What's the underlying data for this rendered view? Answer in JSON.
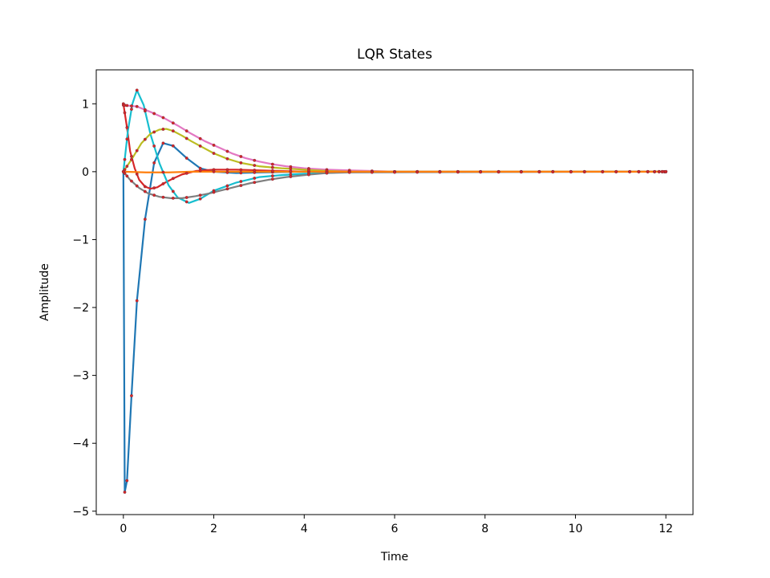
{
  "chart_data": {
    "type": "line",
    "title": "LQR States",
    "xlabel": "Time",
    "ylabel": "Amplitude",
    "xlim": [
      -0.6,
      12.6
    ],
    "ylim": [
      -5.05,
      1.5
    ],
    "xticks": [
      0,
      2,
      4,
      6,
      8,
      10,
      12
    ],
    "yticks": [
      1,
      0,
      -1,
      -2,
      -3,
      -4,
      -5
    ],
    "xtick_labels": [
      "0",
      "2",
      "4",
      "6",
      "8",
      "10",
      "12"
    ],
    "ytick_labels": [
      "1",
      "0",
      "−1",
      "−2",
      "−3",
      "−4",
      "−5"
    ],
    "grid": false,
    "legend": false,
    "marker_color": "#d62728",
    "series": [
      {
        "color": "#1f77b4",
        "x": [
          0.0,
          0.03,
          0.08,
          0.18,
          0.3,
          0.48,
          0.68,
          0.88,
          1.1,
          1.4,
          1.7,
          2.0,
          2.5,
          3.0,
          4.0,
          12.0
        ],
        "y": [
          0.0,
          -4.72,
          -4.55,
          -3.3,
          -1.9,
          -0.7,
          0.13,
          0.42,
          0.38,
          0.2,
          0.05,
          0.0,
          -0.02,
          -0.01,
          0.0,
          0.0
        ]
      },
      {
        "color": "#d62728",
        "x": [
          0.0,
          0.08,
          0.15,
          0.25,
          0.35,
          0.48,
          0.6,
          0.75,
          0.9,
          1.1,
          1.3,
          1.6,
          2.0,
          2.5,
          3.0,
          4.0,
          12.0
        ],
        "y": [
          1.0,
          0.65,
          0.3,
          0.05,
          -0.12,
          -0.22,
          -0.25,
          -0.23,
          -0.17,
          -0.1,
          -0.04,
          0.01,
          0.03,
          0.03,
          0.02,
          0.0,
          0.0
        ]
      },
      {
        "color": "#17becf",
        "x": [
          0.0,
          0.1,
          0.2,
          0.3,
          0.45,
          0.6,
          0.8,
          1.0,
          1.2,
          1.45,
          1.7,
          2.0,
          2.5,
          3.0,
          3.5,
          4.0,
          4.5,
          5.0,
          12.0
        ],
        "y": [
          0.0,
          0.6,
          1.0,
          1.2,
          0.98,
          0.55,
          0.12,
          -0.2,
          -0.38,
          -0.46,
          -0.4,
          -0.28,
          -0.16,
          -0.08,
          -0.05,
          -0.03,
          -0.02,
          0.0,
          0.0
        ]
      },
      {
        "color": "#e377c2",
        "x": [
          0.0,
          0.3,
          0.6,
          0.9,
          1.2,
          1.5,
          1.8,
          2.1,
          2.4,
          2.7,
          3.0,
          3.3,
          3.6,
          4.0,
          4.5,
          5.0,
          5.5,
          6.0,
          12.0
        ],
        "y": [
          0.98,
          0.96,
          0.88,
          0.79,
          0.68,
          0.56,
          0.45,
          0.36,
          0.27,
          0.2,
          0.15,
          0.11,
          0.08,
          0.05,
          0.03,
          0.02,
          0.01,
          0.0,
          0.0
        ]
      },
      {
        "color": "#bcbd22",
        "x": [
          0.0,
          0.2,
          0.4,
          0.6,
          0.8,
          0.95,
          1.1,
          1.3,
          1.5,
          1.75,
          2.0,
          2.3,
          2.6,
          3.0,
          3.5,
          4.0,
          4.5,
          5.0,
          12.0
        ],
        "y": [
          0.0,
          0.2,
          0.42,
          0.56,
          0.62,
          0.63,
          0.6,
          0.53,
          0.45,
          0.36,
          0.27,
          0.19,
          0.13,
          0.08,
          0.05,
          0.03,
          0.01,
          0.0,
          0.0
        ]
      },
      {
        "color": "#7f7f7f",
        "x": [
          0.0,
          0.15,
          0.35,
          0.55,
          0.8,
          1.05,
          1.3,
          1.6,
          1.9,
          2.2,
          2.5,
          2.8,
          3.2,
          3.6,
          4.0,
          4.5,
          5.0,
          12.0
        ],
        "y": [
          0.0,
          -0.12,
          -0.24,
          -0.32,
          -0.37,
          -0.39,
          -0.39,
          -0.36,
          -0.32,
          -0.27,
          -0.22,
          -0.17,
          -0.12,
          -0.08,
          -0.05,
          -0.02,
          -0.01,
          0.0
        ]
      },
      {
        "color": "#ff7f0e",
        "x": [
          0.0,
          0.5,
          1.0,
          1.5,
          2.0,
          2.5,
          3.0,
          12.0
        ],
        "y": [
          0.0,
          -0.01,
          -0.01,
          0.0,
          0.0,
          0.0,
          0.0,
          0.0
        ]
      }
    ],
    "marker_x": [
      0.0,
      0.03,
      0.08,
      0.18,
      0.3,
      0.48,
      0.68,
      0.88,
      1.1,
      1.4,
      1.7,
      2.0,
      2.3,
      2.6,
      2.9,
      3.3,
      3.7,
      4.1,
      4.5,
      5.0,
      5.5,
      6.0,
      6.5,
      7.0,
      7.4,
      7.9,
      8.3,
      8.8,
      9.2,
      9.5,
      9.9,
      10.2,
      10.6,
      10.9,
      11.2,
      11.4,
      11.6,
      11.75,
      11.85,
      11.92,
      11.97,
      12.0
    ],
    "marker_series": [
      0,
      1,
      2,
      3,
      4,
      5
    ]
  }
}
